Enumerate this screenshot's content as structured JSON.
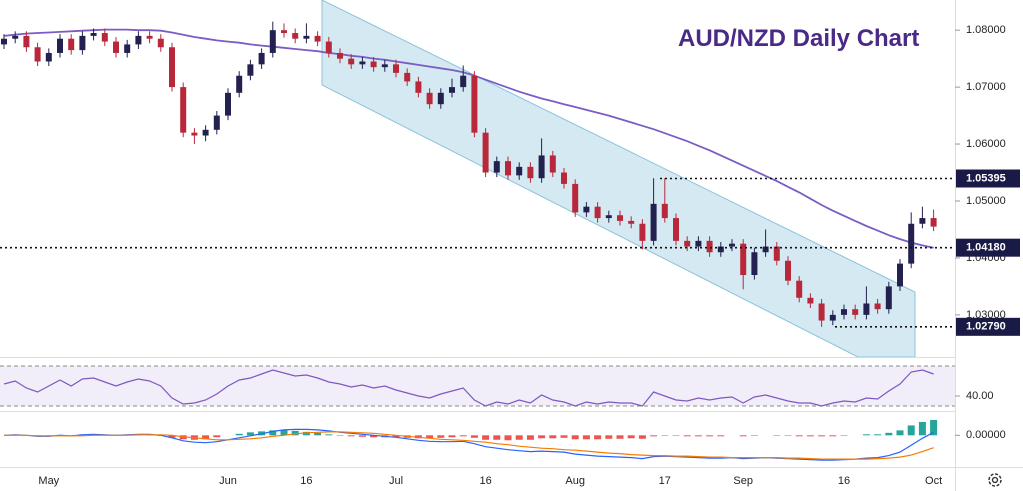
{
  "chart_data": [
    {
      "type": "candlestick",
      "title": "AUD/NZD Daily Chart",
      "categories": [
        null,
        null,
        null,
        null,
        "May",
        null,
        null,
        null,
        null,
        null,
        null,
        null,
        null,
        null,
        null,
        null,
        null,
        null,
        null,
        null,
        "Jun",
        null,
        null,
        null,
        null,
        null,
        null,
        "16",
        null,
        null,
        null,
        null,
        null,
        null,
        null,
        "Jul",
        null,
        null,
        null,
        null,
        null,
        null,
        null,
        "16",
        null,
        null,
        null,
        null,
        null,
        null,
        null,
        "Aug",
        null,
        null,
        null,
        null,
        null,
        null,
        null,
        "17",
        null,
        null,
        null,
        null,
        null,
        null,
        "Sep",
        null,
        null,
        null,
        null,
        null,
        null,
        null,
        null,
        "16",
        null,
        null,
        null,
        null,
        null,
        null,
        null,
        "Oct"
      ],
      "open": [
        1.0775,
        1.0785,
        1.079,
        1.077,
        1.0745,
        1.076,
        1.0785,
        1.0765,
        1.079,
        1.0795,
        1.078,
        1.076,
        1.0775,
        1.079,
        1.0785,
        1.077,
        1.07,
        1.062,
        1.0615,
        1.0625,
        1.065,
        1.069,
        1.072,
        1.074,
        1.076,
        1.08,
        1.0795,
        1.0785,
        1.079,
        1.078,
        1.076,
        1.075,
        1.074,
        1.0745,
        1.0735,
        1.074,
        1.0725,
        1.071,
        1.069,
        1.067,
        1.069,
        1.07,
        1.072,
        1.062,
        1.055,
        1.057,
        1.0545,
        1.056,
        1.054,
        1.058,
        1.055,
        1.053,
        1.048,
        1.049,
        1.047,
        1.0475,
        1.0465,
        1.046,
        1.043,
        1.0495,
        1.047,
        1.043,
        1.042,
        1.043,
        1.041,
        1.042,
        1.0425,
        1.037,
        1.041,
        1.042,
        1.0395,
        1.036,
        1.033,
        1.032,
        1.029,
        1.03,
        1.031,
        1.03,
        1.032,
        1.031,
        1.035,
        1.039,
        1.046,
        1.047
      ],
      "high": [
        1.0793,
        1.0798,
        1.0798,
        1.0778,
        1.0768,
        1.0793,
        1.0793,
        1.0798,
        1.0803,
        1.0803,
        1.0788,
        1.0783,
        1.0798,
        1.0798,
        1.0793,
        1.0778,
        1.0708,
        1.0628,
        1.0633,
        1.0658,
        1.0698,
        1.0728,
        1.0748,
        1.0768,
        1.0815,
        1.0812,
        1.0803,
        1.0812,
        1.0798,
        1.0788,
        1.0768,
        1.0758,
        1.0753,
        1.0753,
        1.0748,
        1.0748,
        1.0733,
        1.0718,
        1.0698,
        1.0698,
        1.0715,
        1.0738,
        1.0728,
        1.0628,
        1.0578,
        1.0578,
        1.0568,
        1.0568,
        1.061,
        1.0588,
        1.0558,
        1.0538,
        1.0498,
        1.0498,
        1.0483,
        1.0483,
        1.0473,
        1.0468,
        1.054,
        1.054,
        1.0478,
        1.0438,
        1.0438,
        1.0438,
        1.0428,
        1.0433,
        1.0433,
        1.0418,
        1.045,
        1.0428,
        1.0403,
        1.0368,
        1.0338,
        1.0328,
        1.0308,
        1.0318,
        1.0318,
        1.035,
        1.0328,
        1.0358,
        1.0398,
        1.048,
        1.049,
        1.0485
      ],
      "low": [
        1.0767,
        1.0777,
        1.0762,
        1.0737,
        1.0737,
        1.0752,
        1.0757,
        1.0757,
        1.0782,
        1.0772,
        1.0752,
        1.0752,
        1.0767,
        1.0777,
        1.0762,
        1.0692,
        1.0612,
        1.06,
        1.0605,
        1.0617,
        1.0642,
        1.0682,
        1.0712,
        1.0732,
        1.0752,
        1.0787,
        1.0777,
        1.0777,
        1.0772,
        1.0752,
        1.0742,
        1.0732,
        1.0732,
        1.0727,
        1.0727,
        1.0717,
        1.0702,
        1.0682,
        1.0662,
        1.0662,
        1.0682,
        1.0692,
        1.0612,
        1.0542,
        1.0542,
        1.0537,
        1.0537,
        1.0532,
        1.0532,
        1.0542,
        1.0522,
        1.0472,
        1.0472,
        1.0462,
        1.0462,
        1.0457,
        1.0452,
        1.0415,
        1.0422,
        1.0462,
        1.0422,
        1.0412,
        1.0412,
        1.0402,
        1.0402,
        1.0412,
        1.0345,
        1.0362,
        1.0402,
        1.0387,
        1.0352,
        1.0322,
        1.0312,
        1.0279,
        1.0282,
        1.0292,
        1.0292,
        1.0292,
        1.0302,
        1.0302,
        1.0342,
        1.0382,
        1.0452,
        1.0447
      ],
      "close": [
        1.0785,
        1.079,
        1.077,
        1.0745,
        1.076,
        1.0785,
        1.0765,
        1.079,
        1.0795,
        1.078,
        1.076,
        1.0775,
        1.079,
        1.0785,
        1.077,
        1.07,
        1.062,
        1.0615,
        1.0625,
        1.065,
        1.069,
        1.072,
        1.074,
        1.076,
        1.08,
        1.0795,
        1.0785,
        1.079,
        1.078,
        1.076,
        1.075,
        1.074,
        1.0745,
        1.0735,
        1.074,
        1.0725,
        1.071,
        1.069,
        1.067,
        1.069,
        1.07,
        1.072,
        1.062,
        1.055,
        1.057,
        1.0545,
        1.056,
        1.054,
        1.058,
        1.055,
        1.053,
        1.048,
        1.049,
        1.047,
        1.0475,
        1.0465,
        1.046,
        1.043,
        1.0495,
        1.047,
        1.043,
        1.042,
        1.043,
        1.041,
        1.042,
        1.0425,
        1.037,
        1.041,
        1.042,
        1.0395,
        1.036,
        1.033,
        1.032,
        1.029,
        1.03,
        1.031,
        1.03,
        1.032,
        1.031,
        1.035,
        1.039,
        1.046,
        1.047,
        1.0455
      ],
      "up_color": "#23214f",
      "down_color": "#b8283a",
      "ma": {
        "color": "#7b5cc4",
        "values": [
          1.079,
          1.0792,
          1.0794,
          1.0795,
          1.0796,
          1.0797,
          1.0798,
          1.0799,
          1.08,
          1.0801,
          1.0801,
          1.0801,
          1.08,
          1.08,
          1.0799,
          1.0796,
          1.0792,
          1.0788,
          1.0785,
          1.0782,
          1.078,
          1.0778,
          1.0775,
          1.0773,
          1.0771,
          1.0769,
          1.0767,
          1.0765,
          1.0763,
          1.076,
          1.0758,
          1.0755,
          1.0753,
          1.075,
          1.0748,
          1.0745,
          1.0742,
          1.0739,
          1.0736,
          1.0733,
          1.073,
          1.0726,
          1.072,
          1.0713,
          1.0706,
          1.0699,
          1.0692,
          1.0686,
          1.068,
          1.0675,
          1.067,
          1.0665,
          1.066,
          1.0655,
          1.065,
          1.0644,
          1.0638,
          1.0632,
          1.0626,
          1.0619,
          1.0612,
          1.0605,
          1.0597,
          1.0589,
          1.058,
          1.0571,
          1.0562,
          1.0553,
          1.0544,
          1.0535,
          1.0525,
          1.0515,
          1.0504,
          1.0493,
          1.0483,
          1.0474,
          1.0465,
          1.0456,
          1.0448,
          1.044,
          1.0433,
          1.0427,
          1.0422,
          1.0418
        ]
      },
      "ylim": [
        1.0226,
        1.0853
      ],
      "yticks": [
        {
          "value": 1.08,
          "label": "1.08000"
        },
        {
          "value": 1.07,
          "label": "1.07000"
        },
        {
          "value": 1.06,
          "label": "1.06000"
        },
        {
          "value": 1.05,
          "label": "1.05000"
        },
        {
          "value": 1.04,
          "label": "1.04000"
        },
        {
          "value": 1.03,
          "label": "1.03000"
        }
      ],
      "levels": [
        {
          "value": 1.05395,
          "label": "1.05395"
        },
        {
          "value": 1.0418,
          "label": "1.04180"
        },
        {
          "value": 1.0279,
          "label": "1.02790"
        }
      ],
      "level_color": "#1a1a46"
    },
    {
      "type": "line",
      "color": "#7e57c2",
      "values": [
        52,
        55,
        48,
        44,
        50,
        56,
        50,
        57,
        58,
        54,
        50,
        54,
        57,
        55,
        50,
        38,
        32,
        33,
        36,
        42,
        50,
        56,
        58,
        62,
        66,
        63,
        60,
        61,
        58,
        54,
        52,
        49,
        51,
        48,
        50,
        46,
        43,
        40,
        38,
        42,
        45,
        48,
        36,
        30,
        34,
        32,
        36,
        33,
        41,
        36,
        34,
        30,
        34,
        32,
        34,
        33,
        33,
        30,
        44,
        40,
        36,
        35,
        38,
        36,
        38,
        39,
        33,
        39,
        41,
        38,
        35,
        33,
        33,
        30,
        33,
        35,
        34,
        38,
        37,
        45,
        52,
        64,
        66,
        62
      ],
      "ylim": [
        28,
        78
      ],
      "yticks": [
        {
          "value": 40,
          "label": "40.00"
        }
      ],
      "bands": [
        30,
        70
      ]
    },
    {
      "type": "macd",
      "macd": {
        "color": "#2962ff",
        "values": [
          0.0,
          0.0001,
          0.0,
          -0.0002,
          -0.0002,
          0.0,
          -0.0001,
          0.0001,
          0.0002,
          0.0001,
          0.0,
          0.0001,
          0.0002,
          0.0002,
          0.0,
          -0.0005,
          -0.0011,
          -0.0014,
          -0.0015,
          -0.0013,
          -0.0009,
          -0.0005,
          -0.0001,
          0.0003,
          0.0008,
          0.0011,
          0.0012,
          0.0012,
          0.0011,
          0.0009,
          0.0006,
          0.0004,
          0.0002,
          0.0,
          -0.0002,
          -0.0004,
          -0.0007,
          -0.001,
          -0.0012,
          -0.0013,
          -0.0013,
          -0.0012,
          -0.0017,
          -0.0023,
          -0.0026,
          -0.0029,
          -0.0031,
          -0.0033,
          -0.0032,
          -0.0033,
          -0.0034,
          -0.0038,
          -0.004,
          -0.0042,
          -0.0043,
          -0.0044,
          -0.0045,
          -0.0047,
          -0.0043,
          -0.0042,
          -0.0043,
          -0.0044,
          -0.0045,
          -0.0046,
          -0.0046,
          -0.0045,
          -0.0047,
          -0.0046,
          -0.0045,
          -0.0046,
          -0.0047,
          -0.0048,
          -0.0049,
          -0.005,
          -0.005,
          -0.0049,
          -0.0048,
          -0.0046,
          -0.0045,
          -0.0041,
          -0.0034,
          -0.002,
          -0.0006,
          0.0006
        ]
      },
      "signal": {
        "color": "#f57c00",
        "values": [
          0.0,
          0.0,
          0.0,
          -0.0001,
          -0.0001,
          -0.0001,
          -0.0001,
          -0.0001,
          0.0,
          0.0,
          0.0,
          0.0,
          0.0001,
          0.0001,
          0.0001,
          0.0,
          -0.0003,
          -0.0005,
          -0.0007,
          -0.0009,
          -0.0009,
          -0.0008,
          -0.0007,
          -0.0005,
          -0.0002,
          0.0,
          0.0003,
          0.0005,
          0.0006,
          0.0007,
          0.0007,
          0.0006,
          0.0005,
          0.0004,
          0.0002,
          0.0,
          -0.0002,
          -0.0004,
          -0.0006,
          -0.0008,
          -0.0009,
          -0.001,
          -0.0012,
          -0.0014,
          -0.0017,
          -0.0019,
          -0.0022,
          -0.0024,
          -0.0026,
          -0.0027,
          -0.0029,
          -0.003,
          -0.0032,
          -0.0034,
          -0.0036,
          -0.0037,
          -0.0039,
          -0.004,
          -0.0041,
          -0.0041,
          -0.0042,
          -0.0042,
          -0.0043,
          -0.0044,
          -0.0044,
          -0.0045,
          -0.0045,
          -0.0045,
          -0.0045,
          -0.0045,
          -0.0046,
          -0.0046,
          -0.0047,
          -0.0048,
          -0.0048,
          -0.0048,
          -0.0048,
          -0.0048,
          -0.0047,
          -0.0046,
          -0.0044,
          -0.004,
          -0.0033,
          -0.0025
        ]
      },
      "histogram": [
        0.0,
        0.0001,
        0.0,
        -0.0001,
        -0.0001,
        0.0001,
        0.0,
        0.0002,
        0.0002,
        0.0001,
        0.0,
        0.0001,
        0.0001,
        0.0001,
        -0.0001,
        -0.0005,
        -0.0008,
        -0.0009,
        -0.0008,
        -0.0004,
        0.0,
        0.0003,
        0.0006,
        0.0008,
        0.001,
        0.0011,
        0.0009,
        0.0007,
        0.0005,
        0.0002,
        -0.0001,
        -0.0002,
        -0.0003,
        -0.0004,
        -0.0004,
        -0.0004,
        -0.0005,
        -0.0006,
        -0.0006,
        -0.0005,
        -0.0004,
        -0.0002,
        -0.0005,
        -0.0009,
        -0.0009,
        -0.001,
        -0.0009,
        -0.0009,
        -0.0006,
        -0.0006,
        -0.0005,
        -0.0008,
        -0.0008,
        -0.0008,
        -0.0007,
        -0.0007,
        -0.0006,
        -0.0007,
        -0.0002,
        -0.0001,
        -0.0001,
        -0.0002,
        -0.0002,
        -0.0002,
        -0.0002,
        0.0,
        -0.0002,
        -0.0001,
        0.0,
        -0.0001,
        -0.0001,
        -0.0002,
        -0.0002,
        -0.0002,
        -0.0002,
        -0.0001,
        0.0,
        0.0002,
        0.0002,
        0.0005,
        0.001,
        0.002,
        0.0027,
        0.0031
      ],
      "positive_color": "#26a69a",
      "negative_color": "#ef5350",
      "ylim": [
        -0.006,
        0.0035
      ],
      "yticks": [
        {
          "value": 0,
          "label": "0.00000"
        }
      ]
    }
  ]
}
